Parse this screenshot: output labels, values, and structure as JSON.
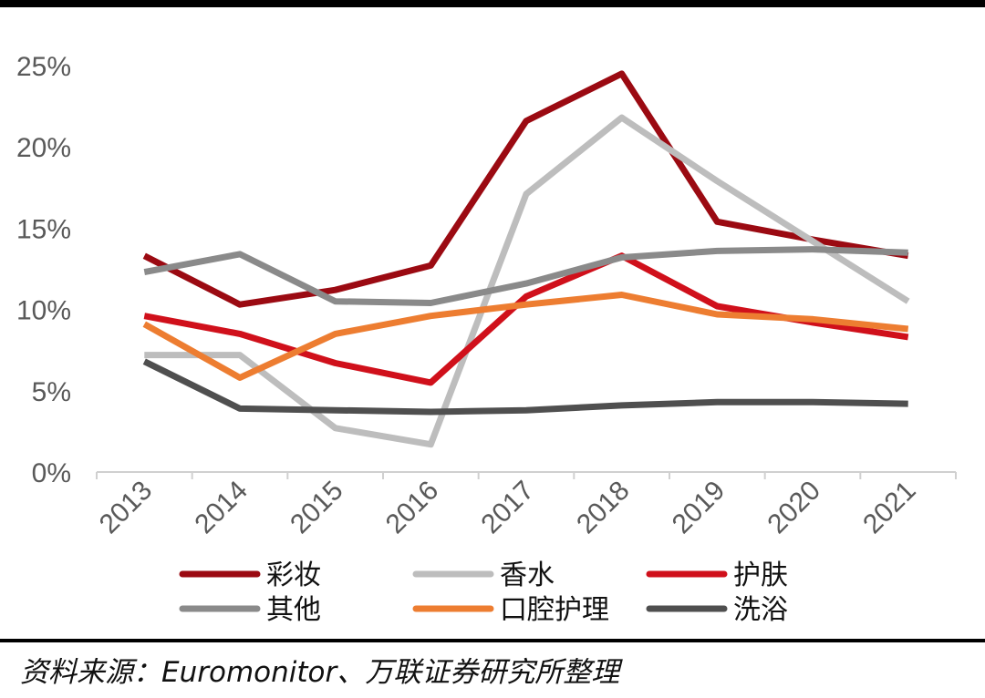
{
  "chart_data": {
    "type": "line",
    "categories": [
      "2013",
      "2014",
      "2015",
      "2016",
      "2017",
      "2018",
      "2019",
      "2020",
      "2021"
    ],
    "y_ticks": [
      "0%",
      "5%",
      "10%",
      "15%",
      "20%",
      "25%"
    ],
    "ylim": [
      0,
      25
    ],
    "grid": false,
    "legend_position": "bottom",
    "series": [
      {
        "name": "彩妆",
        "color": "#9b0a12",
        "values": [
          13.3,
          10.3,
          11.2,
          12.7,
          21.6,
          24.5,
          15.4,
          14.3,
          13.3
        ]
      },
      {
        "name": "香水",
        "color": "#bdbdbd",
        "values": [
          7.2,
          7.2,
          2.7,
          1.7,
          17.1,
          21.8,
          17.9,
          14.2,
          10.5
        ]
      },
      {
        "name": "护肤",
        "color": "#d0101b",
        "values": [
          9.6,
          8.5,
          6.7,
          5.5,
          10.8,
          13.3,
          10.2,
          9.2,
          8.3
        ]
      },
      {
        "name": "其他",
        "color": "#8a8a8a",
        "values": [
          12.3,
          13.4,
          10.5,
          10.4,
          11.6,
          13.2,
          13.6,
          13.7,
          13.5
        ]
      },
      {
        "name": "口腔护理",
        "color": "#ed7d31",
        "values": [
          9.1,
          5.8,
          8.5,
          9.6,
          10.3,
          10.9,
          9.7,
          9.4,
          8.8
        ]
      },
      {
        "name": "洗浴",
        "color": "#4f4f4f",
        "values": [
          6.8,
          3.9,
          3.8,
          3.7,
          3.8,
          4.1,
          4.3,
          4.3,
          4.2
        ]
      }
    ]
  },
  "source_note": "资料来源：Euromonitor、万联证券研究所整理"
}
